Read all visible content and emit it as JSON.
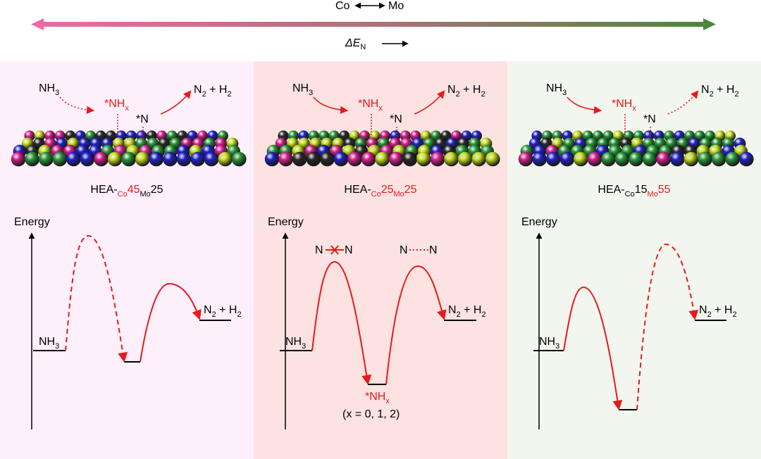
{
  "header": {
    "left": "Co",
    "right": "Mo",
    "delta": "ΔE",
    "delta_sub": "N"
  },
  "panels": [
    {
      "reactant": [
        "NH",
        "3"
      ],
      "intermediate": [
        "*NH",
        "x"
      ],
      "adsorbed": "*N",
      "product": [
        "N",
        "2",
        " + H",
        "2"
      ],
      "label": [
        "HEA-",
        "Co",
        "45",
        "Mo",
        "25"
      ],
      "axis": "Energy",
      "energy_reactant": [
        "NH",
        "3"
      ],
      "energy_product": [
        "N",
        "2",
        " + H",
        "2"
      ]
    },
    {
      "reactant": [
        "NH",
        "3"
      ],
      "intermediate": [
        "*NH",
        "x"
      ],
      "adsorbed": "*N",
      "product": [
        "N",
        "2",
        " + H",
        "2"
      ],
      "label": [
        "HEA-",
        "Co",
        "25",
        "Mo",
        "25"
      ],
      "axis": "Energy",
      "energy_reactant": [
        "NH",
        "3"
      ],
      "energy_product": [
        "N",
        "2",
        " + H",
        "2"
      ],
      "barrier1": [
        "N",
        "N"
      ],
      "barrier2": [
        "N",
        "N"
      ],
      "well": [
        "*NH",
        "x"
      ],
      "well_note": "(x = 0, 1, 2)"
    },
    {
      "reactant": [
        "NH",
        "3"
      ],
      "intermediate": [
        "*NH",
        "x"
      ],
      "adsorbed": "*N",
      "product": [
        "N",
        "2",
        " + H",
        "2"
      ],
      "label": [
        "HEA-",
        "Co",
        "15",
        "Mo",
        "55"
      ],
      "axis": "Energy",
      "energy_reactant": [
        "NH",
        "3"
      ],
      "energy_product": [
        "N",
        "2",
        " + H",
        "2"
      ]
    }
  ]
}
